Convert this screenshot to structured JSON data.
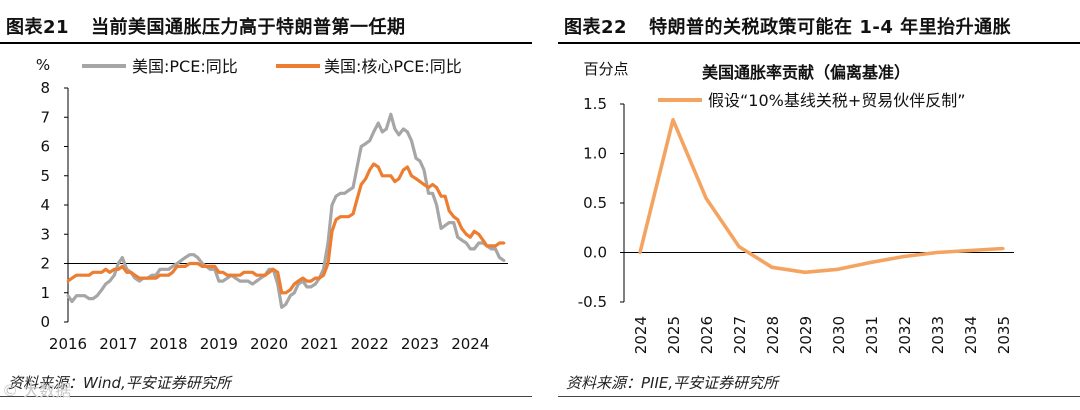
{
  "left": {
    "figure_no": "图表21",
    "title": "当前美国通胀压力高于特朗普第一任期",
    "source": "资料来源：Wind,平安证券研究所"
  },
  "right": {
    "figure_no": "图表22",
    "title": "特朗普的关税政策可能在 1-4 年里抬升通胀",
    "source": "资料来源：PIIE,平安证券研究所"
  },
  "watermark": "© 大数据",
  "chart_data": [
    {
      "type": "line",
      "unit_label": "%",
      "title": "",
      "xlabel": "",
      "ylabel": "%",
      "ylim": [
        0,
        8
      ],
      "yticks": [
        0,
        1,
        2,
        3,
        4,
        5,
        6,
        7,
        8
      ],
      "baseline": 2,
      "x_ticks": [
        "2016",
        "2017",
        "2018",
        "2019",
        "2020",
        "2021",
        "2022",
        "2023",
        "2024"
      ],
      "x_range": [
        2016,
        2024.75
      ],
      "series": [
        {
          "name": "美国:PCE:同比",
          "color": "#a6a6a6",
          "x": [
            2016,
            2016.08,
            2016.17,
            2016.25,
            2016.33,
            2016.42,
            2016.5,
            2016.58,
            2016.67,
            2016.75,
            2016.83,
            2016.92,
            2017,
            2017.08,
            2017.17,
            2017.25,
            2017.33,
            2017.42,
            2017.5,
            2017.58,
            2017.67,
            2017.75,
            2017.83,
            2017.92,
            2018,
            2018.08,
            2018.17,
            2018.25,
            2018.33,
            2018.42,
            2018.5,
            2018.58,
            2018.67,
            2018.75,
            2018.83,
            2018.92,
            2019,
            2019.08,
            2019.17,
            2019.25,
            2019.33,
            2019.42,
            2019.5,
            2019.58,
            2019.67,
            2019.75,
            2019.83,
            2019.92,
            2020,
            2020.08,
            2020.17,
            2020.25,
            2020.33,
            2020.42,
            2020.5,
            2020.58,
            2020.67,
            2020.75,
            2020.83,
            2020.92,
            2021,
            2021.08,
            2021.17,
            2021.25,
            2021.33,
            2021.42,
            2021.5,
            2021.58,
            2021.67,
            2021.75,
            2021.83,
            2021.92,
            2022,
            2022.08,
            2022.17,
            2022.25,
            2022.33,
            2022.42,
            2022.5,
            2022.58,
            2022.67,
            2022.75,
            2022.83,
            2022.92,
            2023,
            2023.08,
            2023.17,
            2023.25,
            2023.33,
            2023.42,
            2023.5,
            2023.58,
            2023.67,
            2023.75,
            2023.83,
            2023.92,
            2024,
            2024.08,
            2024.17,
            2024.25,
            2024.33,
            2024.42,
            2024.5,
            2024.58,
            2024.67
          ],
          "values": [
            0.9,
            0.7,
            0.9,
            0.9,
            0.9,
            0.8,
            0.8,
            0.9,
            1.1,
            1.3,
            1.4,
            1.6,
            2.0,
            2.2,
            1.8,
            1.7,
            1.5,
            1.4,
            1.5,
            1.5,
            1.6,
            1.6,
            1.8,
            1.8,
            1.8,
            1.9,
            2.0,
            2.1,
            2.2,
            2.3,
            2.3,
            2.2,
            2.0,
            1.9,
            1.8,
            1.8,
            1.4,
            1.4,
            1.5,
            1.6,
            1.5,
            1.4,
            1.4,
            1.4,
            1.3,
            1.4,
            1.5,
            1.6,
            1.8,
            1.8,
            1.3,
            0.5,
            0.6,
            0.9,
            1.0,
            1.3,
            1.4,
            1.2,
            1.2,
            1.3,
            1.5,
            1.8,
            2.7,
            4.0,
            4.3,
            4.4,
            4.4,
            4.5,
            4.6,
            5.3,
            6.0,
            6.1,
            6.2,
            6.5,
            6.8,
            6.5,
            6.6,
            7.1,
            6.6,
            6.4,
            6.6,
            6.5,
            6.2,
            5.6,
            5.5,
            5.2,
            4.4,
            4.4,
            4.0,
            3.2,
            3.3,
            3.4,
            3.4,
            2.9,
            2.8,
            2.7,
            2.5,
            2.5,
            2.7,
            2.7,
            2.6,
            2.5,
            2.5,
            2.2,
            2.1
          ]
        },
        {
          "name": "美国:核心PCE:同比",
          "color": "#ed7d31",
          "x": [
            2016,
            2016.08,
            2016.17,
            2016.25,
            2016.33,
            2016.42,
            2016.5,
            2016.58,
            2016.67,
            2016.75,
            2016.83,
            2016.92,
            2017,
            2017.08,
            2017.17,
            2017.25,
            2017.33,
            2017.42,
            2017.5,
            2017.58,
            2017.67,
            2017.75,
            2017.83,
            2017.92,
            2018,
            2018.08,
            2018.17,
            2018.25,
            2018.33,
            2018.42,
            2018.5,
            2018.58,
            2018.67,
            2018.75,
            2018.83,
            2018.92,
            2019,
            2019.08,
            2019.17,
            2019.25,
            2019.33,
            2019.42,
            2019.5,
            2019.58,
            2019.67,
            2019.75,
            2019.83,
            2019.92,
            2020,
            2020.08,
            2020.17,
            2020.25,
            2020.33,
            2020.42,
            2020.5,
            2020.58,
            2020.67,
            2020.75,
            2020.83,
            2020.92,
            2021,
            2021.08,
            2021.17,
            2021.25,
            2021.33,
            2021.42,
            2021.5,
            2021.58,
            2021.67,
            2021.75,
            2021.83,
            2021.92,
            2022,
            2022.08,
            2022.17,
            2022.25,
            2022.33,
            2022.42,
            2022.5,
            2022.58,
            2022.67,
            2022.75,
            2022.83,
            2022.92,
            2023,
            2023.08,
            2023.17,
            2023.25,
            2023.33,
            2023.42,
            2023.5,
            2023.58,
            2023.67,
            2023.75,
            2023.83,
            2023.92,
            2024,
            2024.08,
            2024.17,
            2024.25,
            2024.33,
            2024.42,
            2024.5,
            2024.58,
            2024.67
          ],
          "values": [
            1.4,
            1.5,
            1.6,
            1.6,
            1.6,
            1.6,
            1.7,
            1.7,
            1.7,
            1.8,
            1.7,
            1.8,
            1.8,
            1.9,
            1.7,
            1.7,
            1.6,
            1.5,
            1.5,
            1.5,
            1.5,
            1.5,
            1.6,
            1.6,
            1.6,
            1.7,
            1.9,
            1.9,
            1.9,
            2.0,
            2.0,
            2.0,
            1.9,
            1.9,
            1.9,
            1.9,
            1.7,
            1.7,
            1.6,
            1.6,
            1.6,
            1.6,
            1.7,
            1.7,
            1.7,
            1.6,
            1.6,
            1.6,
            1.7,
            1.8,
            1.7,
            1.0,
            1.0,
            1.1,
            1.3,
            1.4,
            1.5,
            1.4,
            1.4,
            1.5,
            1.5,
            1.6,
            2.0,
            3.1,
            3.5,
            3.6,
            3.6,
            3.6,
            3.7,
            4.2,
            4.7,
            4.9,
            5.2,
            5.4,
            5.3,
            5.0,
            5.0,
            5.0,
            4.8,
            4.9,
            5.2,
            5.3,
            5.0,
            4.9,
            4.8,
            4.7,
            4.6,
            4.7,
            4.6,
            4.3,
            4.3,
            3.8,
            3.6,
            3.5,
            3.2,
            3.0,
            2.9,
            3.1,
            3.0,
            2.8,
            2.6,
            2.6,
            2.6,
            2.7,
            2.7
          ]
        }
      ]
    },
    {
      "type": "line",
      "title": "美国通胀率贡献（偏离基准）",
      "unit_label": "百分点",
      "xlabel": "",
      "ylabel": "百分点",
      "ylim": [
        -0.5,
        1.5
      ],
      "yticks": [
        -0.5,
        0.0,
        0.5,
        1.0,
        1.5
      ],
      "ytick_labels": [
        "-0.5",
        "0.0",
        "0.5",
        "1.0",
        "1.5"
      ],
      "baseline": 0,
      "categories": [
        "2024",
        "2025",
        "2026",
        "2027",
        "2028",
        "2029",
        "2030",
        "2031",
        "2032",
        "2033",
        "2034",
        "2035"
      ],
      "series": [
        {
          "name": "假设“10%基线关税+贸易伙伴反制”",
          "color": "#f4a460",
          "values": [
            0.0,
            1.34,
            0.55,
            0.06,
            -0.15,
            -0.2,
            -0.17,
            -0.1,
            -0.04,
            0.0,
            0.02,
            0.04
          ]
        }
      ]
    }
  ]
}
